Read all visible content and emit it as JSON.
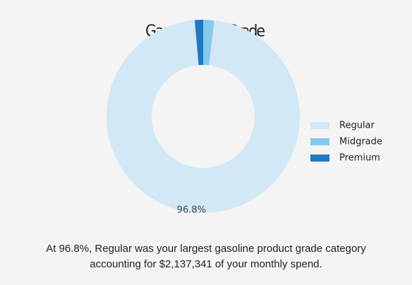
{
  "chart_data": {
    "type": "pie",
    "title": "Gasoline Fuel Grade",
    "categories": [
      "Regular",
      "Midgrade",
      "Premium"
    ],
    "values": [
      96.8,
      1.8,
      1.4
    ],
    "value_labels": [
      "96.8%",
      null,
      null
    ],
    "colors": [
      "#d3e8f6",
      "#86c9ef",
      "#1f78c1"
    ],
    "legend": "right",
    "caption": "At 96.8%, Regular was your largest gasoline product grade category accounting for $2,137,341 of your monthly spend."
  }
}
